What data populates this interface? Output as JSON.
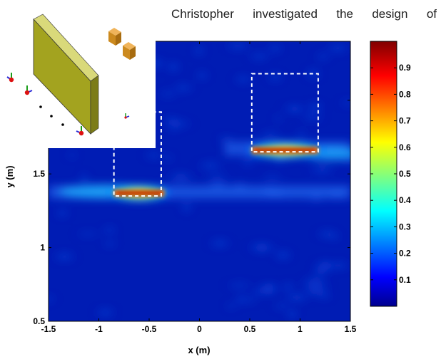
{
  "caption": "Christopher investigated the design of",
  "chart_data": {
    "type": "heatmap",
    "title": "",
    "xlabel": "x (m)",
    "ylabel": "y (m)",
    "xlim": [
      -1.5,
      1.5
    ],
    "ylim": [
      0.5,
      2.4
    ],
    "x_ticks": [
      "-1.5",
      "-1",
      "-0.5",
      "0",
      "0.5",
      "1",
      "1.5"
    ],
    "x_tick_values": [
      -1.5,
      -1,
      -0.5,
      0,
      0.5,
      1,
      1.5
    ],
    "y_ticks": [
      "0.5",
      "1",
      "1.5",
      "2"
    ],
    "y_tick_values": [
      0.5,
      1,
      1.5,
      2
    ],
    "colorbar": {
      "range": [
        0,
        1
      ],
      "ticks": [
        "0.1",
        "0.2",
        "0.3",
        "0.4",
        "0.5",
        "0.6",
        "0.7",
        "0.8",
        "0.9"
      ],
      "tick_values": [
        0.1,
        0.2,
        0.3,
        0.4,
        0.5,
        0.6,
        0.7,
        0.8,
        0.9
      ],
      "colormap": "jet"
    },
    "hotspots": [
      {
        "x": [
          -0.85,
          -0.35
        ],
        "y": 1.37,
        "intensity": 1.0
      },
      {
        "x": [
          0.52,
          1.18
        ],
        "y": 1.66,
        "intensity": 1.0
      }
    ],
    "target_boxes": [
      {
        "x": [
          -0.85,
          -0.38
        ],
        "y": [
          1.35,
          1.92
        ]
      },
      {
        "x": [
          0.52,
          1.18
        ],
        "y": [
          1.65,
          2.18
        ]
      }
    ]
  },
  "inset": {
    "description_icons": [
      "wall",
      "cubes",
      "antenna"
    ]
  }
}
